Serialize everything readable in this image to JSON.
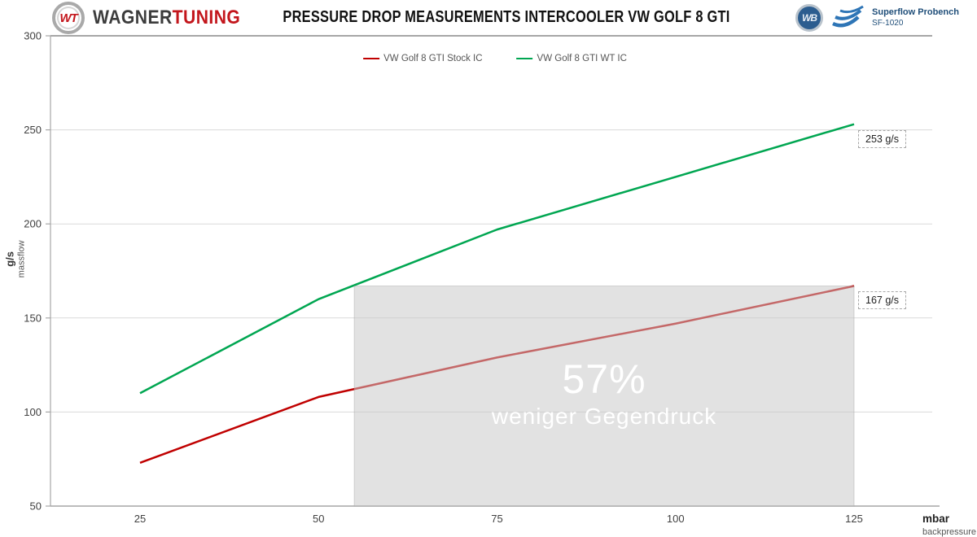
{
  "header": {
    "brand": {
      "badge_monogram": "WT",
      "name_primary": "WAGNER",
      "name_secondary": "TUNING"
    },
    "title": "PRESSURE DROP MEASUREMENTS INTERCOOLER VW GOLF 8 GTI",
    "bench": {
      "logo_monogram": "WB",
      "name": "Superflow Probench",
      "model": "SF-1020"
    }
  },
  "chart_data": {
    "type": "line",
    "x": [
      25,
      50,
      75,
      100,
      125
    ],
    "y_ticks": [
      300,
      250,
      200,
      150,
      100,
      50
    ],
    "xlim": [
      12.5,
      136
    ],
    "ylim": [
      50,
      300
    ],
    "grid": true,
    "legend_position": "top-center",
    "xlabel": {
      "unit": "mbar",
      "name": "backpressure"
    },
    "ylabel": {
      "unit": "g/s",
      "name": "massflow"
    },
    "series": [
      {
        "name": "VW Golf 8 GTI Stock IC",
        "color": "#c00000",
        "values": [
          73,
          108,
          129,
          147,
          167
        ]
      },
      {
        "name": "VW Golf 8 GTI WT IC",
        "color": "#00a651",
        "values": [
          110,
          160,
          197,
          225,
          253
        ]
      }
    ],
    "annotations": [
      {
        "text": "253 g/s",
        "x": 125,
        "y": 253
      },
      {
        "text": "167 g/s",
        "x": 125,
        "y": 167
      }
    ],
    "highlight_region": {
      "x_from": 55,
      "x_to": 125,
      "y_from": 50,
      "y_to": 167,
      "label_primary": "57%",
      "label_secondary": "weniger Gegendruck"
    }
  }
}
